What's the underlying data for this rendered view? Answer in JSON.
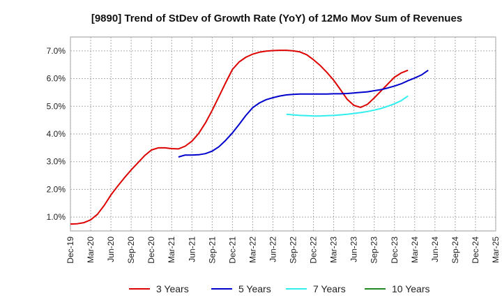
{
  "chart_data": {
    "type": "line",
    "title": "[9890]  Trend of StDev of Growth Rate (YoY) of 12Mo Mov Sum of Revenues",
    "xlabel": "",
    "ylabel": "",
    "ylim": [
      0.5,
      7.5
    ],
    "y_ticks": [
      1.0,
      2.0,
      3.0,
      4.0,
      5.0,
      6.0,
      7.0
    ],
    "y_tick_labels": [
      "1.0%",
      "2.0%",
      "3.0%",
      "4.0%",
      "5.0%",
      "6.0%",
      "7.0%"
    ],
    "x_tick_labels": [
      "Dec-19",
      "Mar-20",
      "Jun-20",
      "Sep-20",
      "Dec-20",
      "Mar-21",
      "Jun-21",
      "Sep-21",
      "Dec-21",
      "Mar-22",
      "Jun-22",
      "Sep-22",
      "Dec-22",
      "Mar-23",
      "Jun-23",
      "Sep-23",
      "Dec-23",
      "Mar-24",
      "Jun-24",
      "Sep-24",
      "Dec-24",
      "Mar-25"
    ],
    "grid": true,
    "legend_position": "bottom",
    "series": [
      {
        "name": "3 Years",
        "color": "#dd0000",
        "points": [
          [
            0,
            0.75
          ],
          [
            1,
            0.76
          ],
          [
            2,
            0.8
          ],
          [
            3,
            0.9
          ],
          [
            4,
            1.1
          ],
          [
            5,
            1.42
          ],
          [
            6,
            1.8
          ],
          [
            7,
            2.12
          ],
          [
            8,
            2.42
          ],
          [
            9,
            2.7
          ],
          [
            10,
            2.96
          ],
          [
            11,
            3.22
          ],
          [
            12,
            3.42
          ],
          [
            13,
            3.5
          ],
          [
            14,
            3.5
          ],
          [
            15,
            3.47
          ],
          [
            16,
            3.46
          ],
          [
            17,
            3.56
          ],
          [
            18,
            3.74
          ],
          [
            19,
            4.02
          ],
          [
            20,
            4.4
          ],
          [
            21,
            4.85
          ],
          [
            22,
            5.35
          ],
          [
            23,
            5.85
          ],
          [
            24,
            6.33
          ],
          [
            25,
            6.6
          ],
          [
            26,
            6.77
          ],
          [
            27,
            6.88
          ],
          [
            28,
            6.95
          ],
          [
            29,
            6.99
          ],
          [
            30,
            7.01
          ],
          [
            31,
            7.02
          ],
          [
            32,
            7.02
          ],
          [
            33,
            7.0
          ],
          [
            34,
            6.96
          ],
          [
            35,
            6.86
          ],
          [
            36,
            6.68
          ],
          [
            37,
            6.47
          ],
          [
            38,
            6.22
          ],
          [
            39,
            5.94
          ],
          [
            40,
            5.6
          ],
          [
            41,
            5.25
          ],
          [
            42,
            5.03
          ],
          [
            43,
            4.96
          ],
          [
            44,
            5.07
          ],
          [
            45,
            5.3
          ],
          [
            46,
            5.55
          ],
          [
            47,
            5.8
          ],
          [
            48,
            6.05
          ],
          [
            49,
            6.2
          ],
          [
            50,
            6.3
          ]
        ]
      },
      {
        "name": "5 Years",
        "color": "#0000cc",
        "points": [
          [
            16,
            3.17
          ],
          [
            17,
            3.24
          ],
          [
            18,
            3.24
          ],
          [
            19,
            3.25
          ],
          [
            20,
            3.29
          ],
          [
            21,
            3.38
          ],
          [
            22,
            3.54
          ],
          [
            23,
            3.77
          ],
          [
            24,
            4.04
          ],
          [
            25,
            4.35
          ],
          [
            26,
            4.67
          ],
          [
            27,
            4.95
          ],
          [
            28,
            5.12
          ],
          [
            29,
            5.24
          ],
          [
            30,
            5.31
          ],
          [
            31,
            5.37
          ],
          [
            32,
            5.41
          ],
          [
            33,
            5.43
          ],
          [
            34,
            5.44
          ],
          [
            35,
            5.44
          ],
          [
            36,
            5.44
          ],
          [
            37,
            5.44
          ],
          [
            38,
            5.44
          ],
          [
            39,
            5.45
          ],
          [
            40,
            5.45
          ],
          [
            41,
            5.46
          ],
          [
            42,
            5.48
          ],
          [
            43,
            5.5
          ],
          [
            44,
            5.52
          ],
          [
            45,
            5.56
          ],
          [
            46,
            5.6
          ],
          [
            47,
            5.66
          ],
          [
            48,
            5.73
          ],
          [
            49,
            5.81
          ],
          [
            50,
            5.92
          ],
          [
            51,
            6.02
          ],
          [
            52,
            6.13
          ],
          [
            53,
            6.3
          ]
        ]
      },
      {
        "name": "7 Years",
        "color": "#33eeee",
        "points": [
          [
            32,
            4.71
          ],
          [
            33,
            4.69
          ],
          [
            34,
            4.67
          ],
          [
            35,
            4.66
          ],
          [
            36,
            4.65
          ],
          [
            37,
            4.65
          ],
          [
            38,
            4.66
          ],
          [
            39,
            4.67
          ],
          [
            40,
            4.69
          ],
          [
            41,
            4.71
          ],
          [
            42,
            4.74
          ],
          [
            43,
            4.77
          ],
          [
            44,
            4.81
          ],
          [
            45,
            4.86
          ],
          [
            46,
            4.92
          ],
          [
            47,
            5.0
          ],
          [
            48,
            5.09
          ],
          [
            49,
            5.2
          ],
          [
            50,
            5.37
          ]
        ]
      },
      {
        "name": "10 Years",
        "color": "#228822",
        "points": []
      }
    ]
  }
}
